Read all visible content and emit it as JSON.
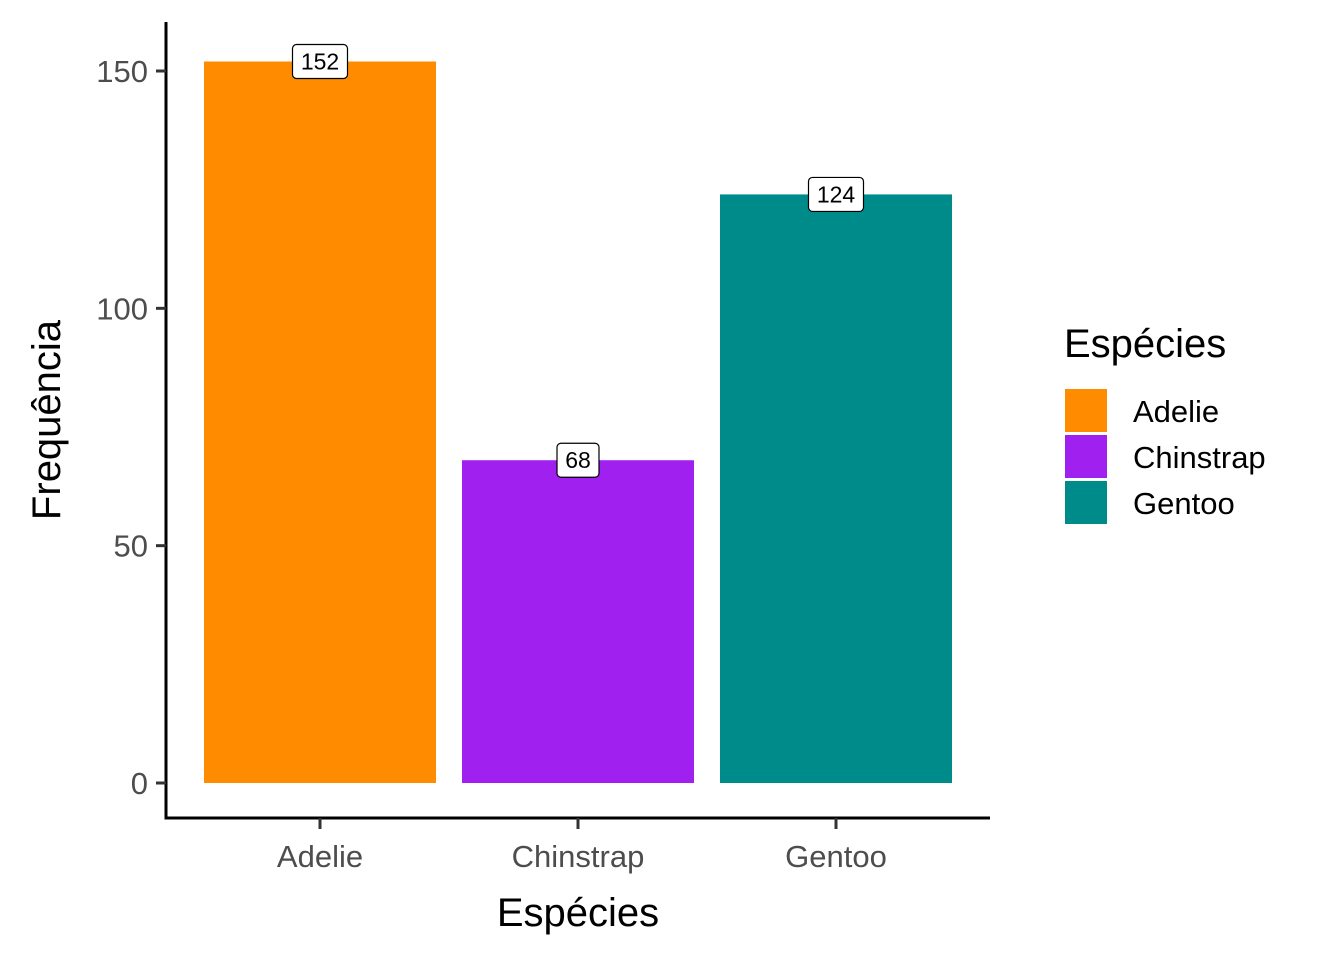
{
  "chart_data": {
    "type": "bar",
    "categories": [
      "Adelie",
      "Chinstrap",
      "Gentoo"
    ],
    "values": [
      152,
      68,
      124
    ],
    "colors": [
      "#FF8C00",
      "#A020F0",
      "#008B8B"
    ],
    "title": "",
    "xlabel": "Espécies",
    "ylabel": "Frequência",
    "ylim": [
      0,
      160
    ],
    "yticks": [
      0,
      50,
      100,
      150
    ],
    "grid": false,
    "legend": {
      "title": "Espécies",
      "position": "right",
      "entries": [
        "Adelie",
        "Chinstrap",
        "Gentoo"
      ]
    },
    "data_labels": [
      "152",
      "68",
      "124"
    ]
  }
}
